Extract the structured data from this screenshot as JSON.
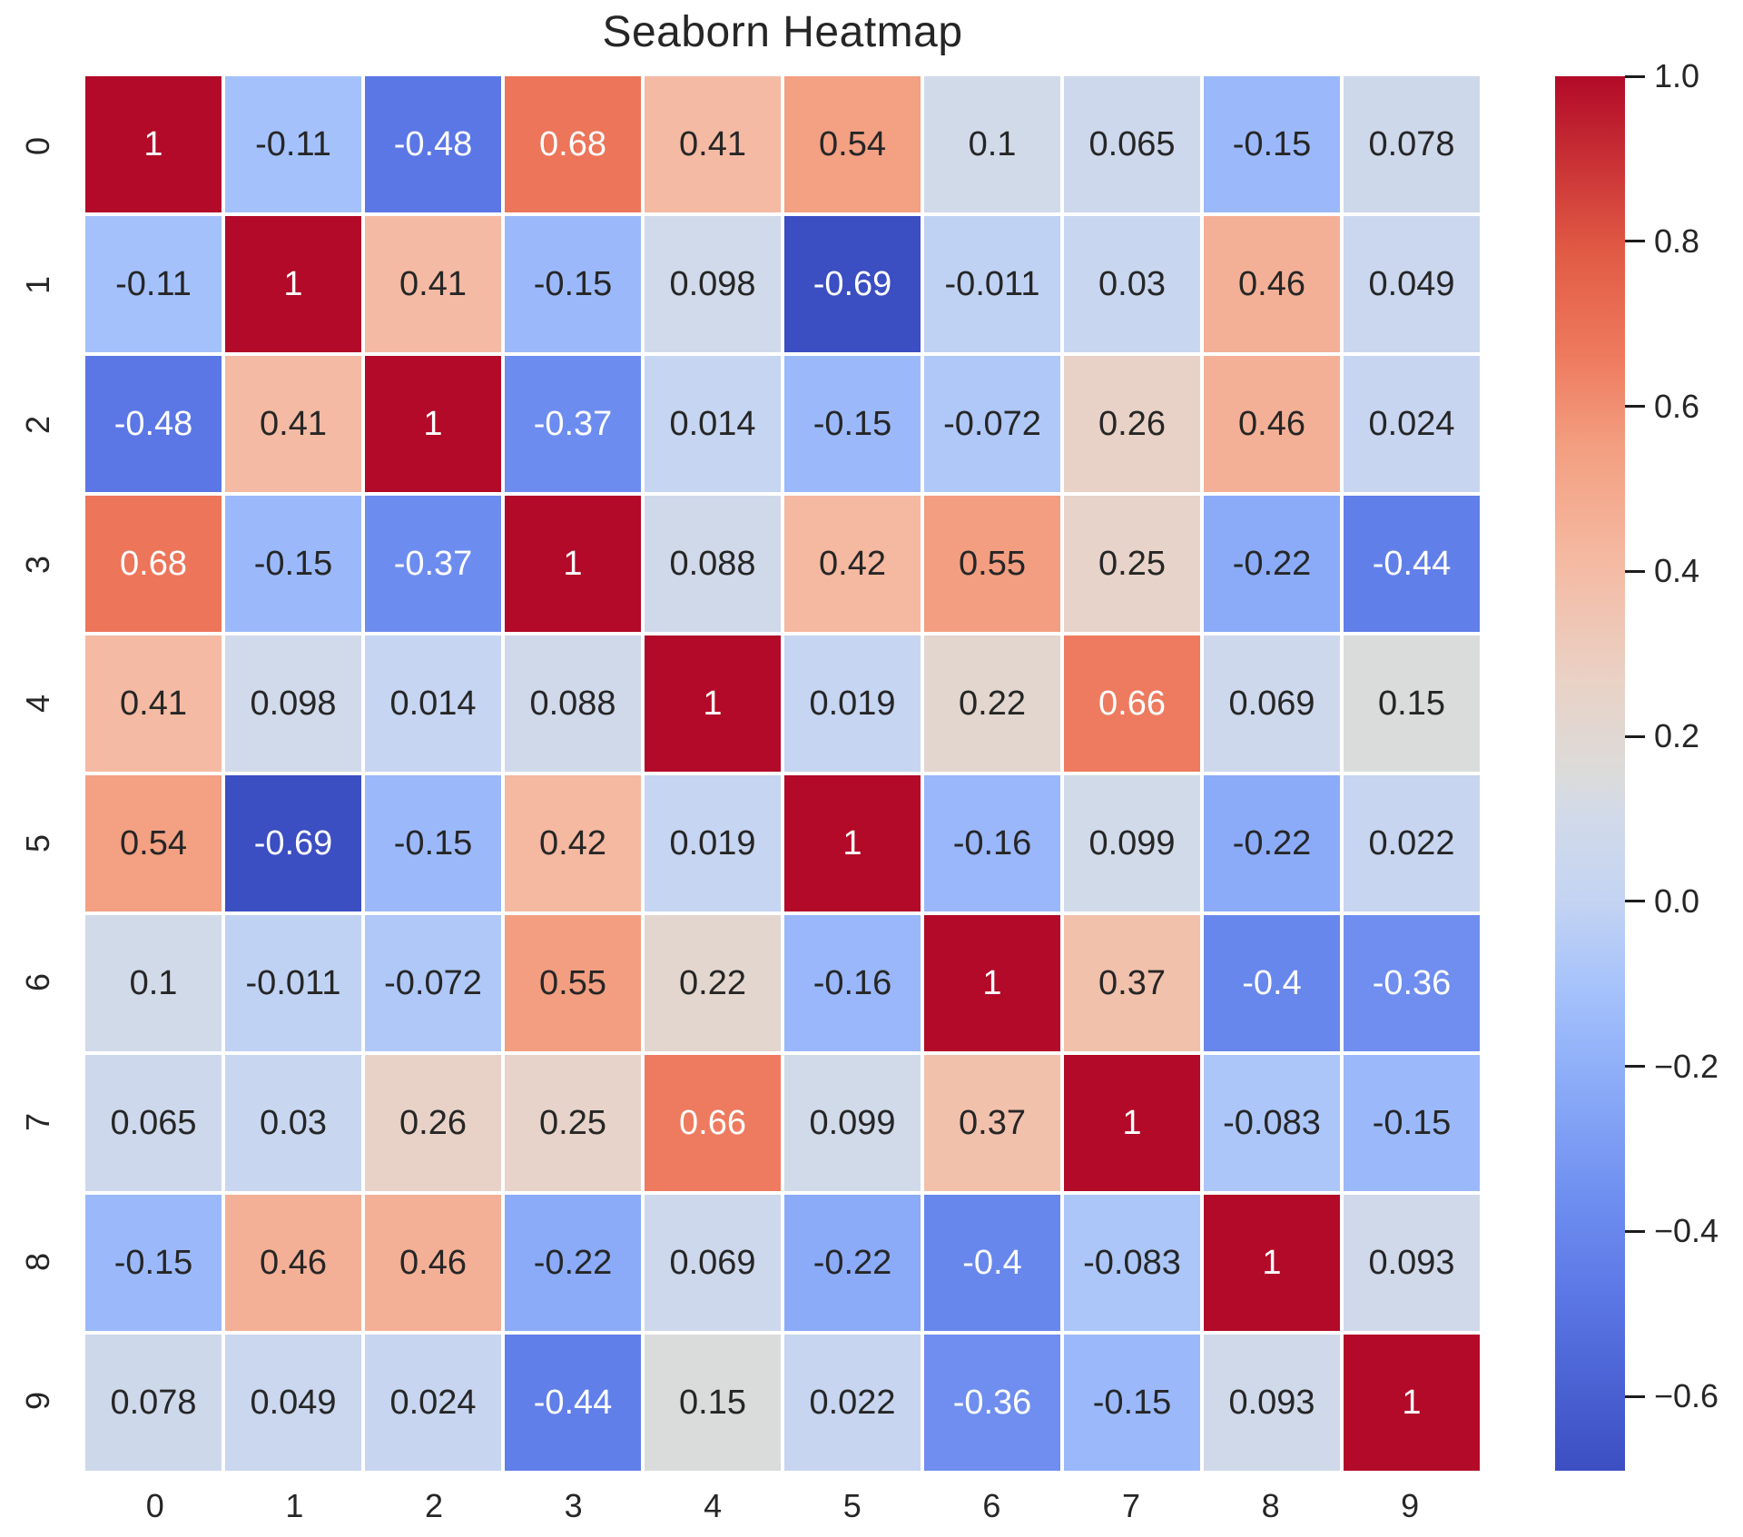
{
  "title": "Seaborn Heatmap",
  "chart_data": {
    "type": "heatmap",
    "colormap": "coolwarm",
    "grid": "off",
    "legend_position": "right-colorbar",
    "x_tick_labels": [
      "0",
      "1",
      "2",
      "3",
      "4",
      "5",
      "6",
      "7",
      "8",
      "9"
    ],
    "y_tick_labels": [
      "0",
      "1",
      "2",
      "3",
      "4",
      "5",
      "6",
      "7",
      "8",
      "9"
    ],
    "cell_values": [
      [
        "1",
        "-0.11",
        "-0.48",
        "0.68",
        "0.41",
        "0.54",
        "0.1",
        "0.065",
        "-0.15",
        "0.078"
      ],
      [
        "-0.11",
        "1",
        "0.41",
        "-0.15",
        "0.098",
        "-0.69",
        "-0.011",
        "0.03",
        "0.46",
        "0.049"
      ],
      [
        "-0.48",
        "0.41",
        "1",
        "-0.37",
        "0.014",
        "-0.15",
        "-0.072",
        "0.26",
        "0.46",
        "0.024"
      ],
      [
        "0.68",
        "-0.15",
        "-0.37",
        "1",
        "0.088",
        "0.42",
        "0.55",
        "0.25",
        "-0.22",
        "-0.44"
      ],
      [
        "0.41",
        "0.098",
        "0.014",
        "0.088",
        "1",
        "0.019",
        "0.22",
        "0.66",
        "0.069",
        "0.15"
      ],
      [
        "0.54",
        "-0.69",
        "-0.15",
        "0.42",
        "0.019",
        "1",
        "-0.16",
        "0.099",
        "-0.22",
        "0.022"
      ],
      [
        "0.1",
        "-0.011",
        "-0.072",
        "0.55",
        "0.22",
        "-0.16",
        "1",
        "0.37",
        "-0.4",
        "-0.36"
      ],
      [
        "0.065",
        "0.03",
        "0.26",
        "0.25",
        "0.66",
        "0.099",
        "0.37",
        "1",
        "-0.083",
        "-0.15"
      ],
      [
        "-0.15",
        "0.46",
        "0.46",
        "-0.22",
        "0.069",
        "-0.22",
        "-0.4",
        "-0.083",
        "1",
        "0.093"
      ],
      [
        "0.078",
        "0.049",
        "0.024",
        "-0.44",
        "0.15",
        "0.022",
        "-0.36",
        "-0.15",
        "0.093",
        "1"
      ]
    ],
    "colorbar": {
      "vmin": -0.69,
      "vmax": 1.0,
      "tick_values": [
        1.0,
        0.8,
        0.6,
        0.4,
        0.2,
        0.0,
        -0.2,
        -0.4,
        -0.6
      ],
      "tick_labels": [
        "1.0",
        "0.8",
        "0.6",
        "0.4",
        "0.2",
        "0.0",
        "−0.2",
        "−0.4",
        "−0.6"
      ]
    }
  },
  "colors": {
    "background": "#ffffff",
    "title_text": "#262626",
    "tick_text": "#262626",
    "annotation_dark": "#262626",
    "annotation_light": "#ffffff",
    "grid_line": "#ffffff",
    "cmap_anchors": [
      [
        0.0,
        "#3B4EC2"
      ],
      [
        0.125,
        "#5B77E5"
      ],
      [
        0.2,
        "#7090F1"
      ],
      [
        0.28,
        "#8CACF8"
      ],
      [
        0.345,
        "#A5C2FB"
      ],
      [
        0.41,
        "#C4D4F2"
      ],
      [
        0.47,
        "#D2DAE9"
      ],
      [
        0.5,
        "#DBDBDA"
      ],
      [
        0.565,
        "#E9D2C6"
      ],
      [
        0.655,
        "#F5B9A1"
      ],
      [
        0.735,
        "#F39E80"
      ],
      [
        0.8,
        "#EE7A5E"
      ],
      [
        0.875,
        "#E15A44"
      ],
      [
        1.0,
        "#B20A28"
      ]
    ]
  }
}
